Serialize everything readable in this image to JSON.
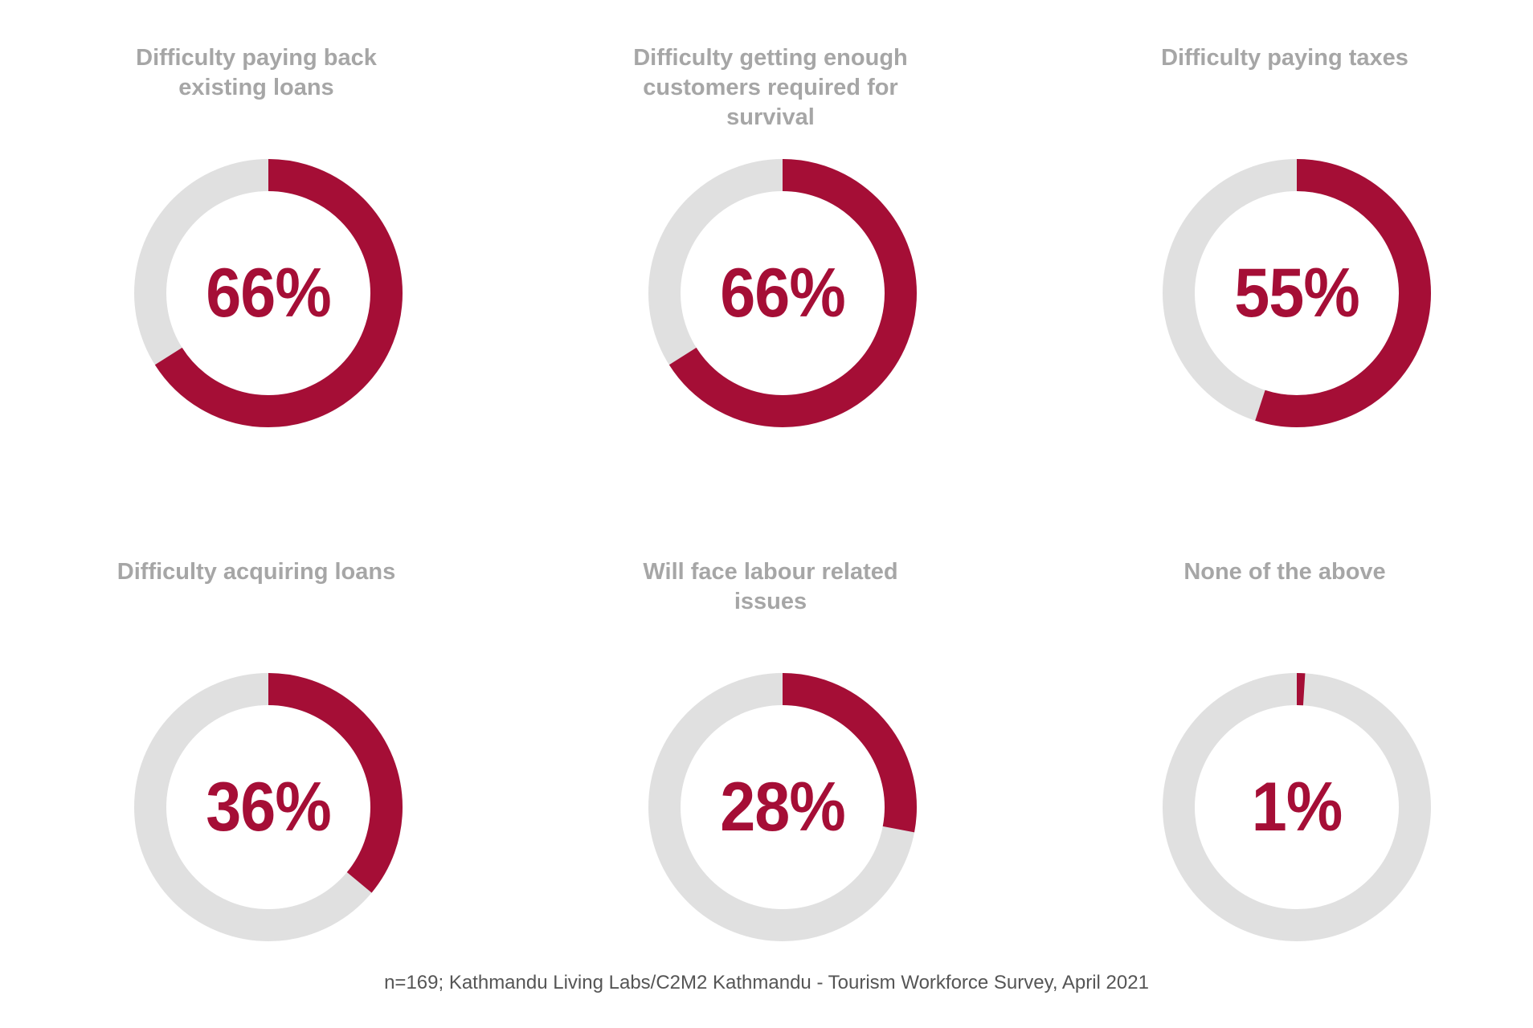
{
  "chart_data": [
    {
      "type": "pie",
      "title": "Difficulty paying back existing loans",
      "value": 66,
      "label": "66%"
    },
    {
      "type": "pie",
      "title": "Difficulty getting enough customers required for survival",
      "value": 66,
      "label": "66%"
    },
    {
      "type": "pie",
      "title": "Difficulty paying taxes",
      "value": 55,
      "label": "55%"
    },
    {
      "type": "pie",
      "title": "Difficulty acquiring loans",
      "value": 36,
      "label": "36%"
    },
    {
      "type": "pie",
      "title": "Will face labour related issues",
      "value": 28,
      "label": "28%"
    },
    {
      "type": "pie",
      "title": "None of the above",
      "value": 1,
      "label": "1%"
    }
  ],
  "colors": {
    "filled": "#a50e36",
    "track": "#e0e0e0",
    "title": "#a6a6a6",
    "value": "#a50e36"
  },
  "source": "n=169; Kathmandu Living Labs/C2M2 Kathmandu - Tourism Workforce Survey, April 2021"
}
